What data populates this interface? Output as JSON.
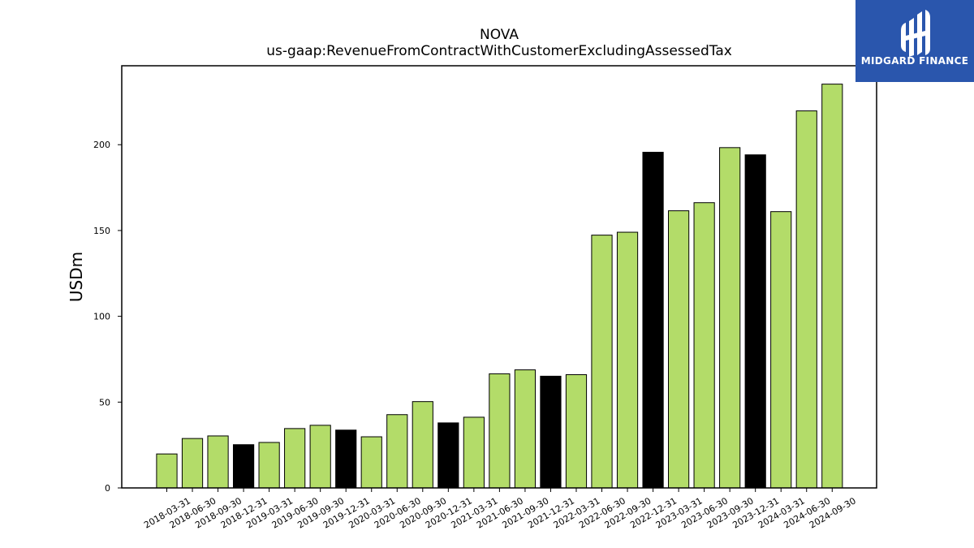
{
  "logo": {
    "text": "MIDGARD FINANCE",
    "icon": "midgard-logo-icon",
    "background": "#2a56ad"
  },
  "chart_data": {
    "type": "bar",
    "title": "NOVA",
    "subtitle": "us-gaap:RevenueFromContractWithCustomerExcludingAssessedTax",
    "xlabel": "",
    "ylabel": "USDm",
    "ylim": [
      0,
      246
    ],
    "yticks": [
      0,
      50,
      100,
      150,
      200
    ],
    "grid": false,
    "colors": {
      "quarter": "#b3dc69",
      "year_end": "#000000",
      "edge": "#000000"
    },
    "categories": [
      "2018-03-31",
      "2018-06-30",
      "2018-09-30",
      "2018-12-31",
      "2019-03-31",
      "2019-06-30",
      "2019-09-30",
      "2019-12-31",
      "2020-03-31",
      "2020-06-30",
      "2020-09-30",
      "2020-12-31",
      "2021-03-31",
      "2021-06-30",
      "2021-09-30",
      "2021-12-31",
      "2022-03-31",
      "2022-06-30",
      "2022-09-30",
      "2022-12-31",
      "2023-03-31",
      "2023-06-30",
      "2023-09-30",
      "2023-12-31",
      "2024-03-31",
      "2024-06-30",
      "2024-09-30"
    ],
    "values": [
      19.8,
      28.8,
      30.3,
      25.2,
      26.5,
      34.6,
      36.5,
      33.7,
      29.8,
      42.7,
      50.3,
      37.9,
      41.2,
      66.5,
      68.8,
      65.1,
      66.0,
      147.3,
      149.0,
      195.6,
      161.5,
      166.2,
      198.3,
      194.1,
      161.0,
      219.7,
      235.3
    ]
  }
}
